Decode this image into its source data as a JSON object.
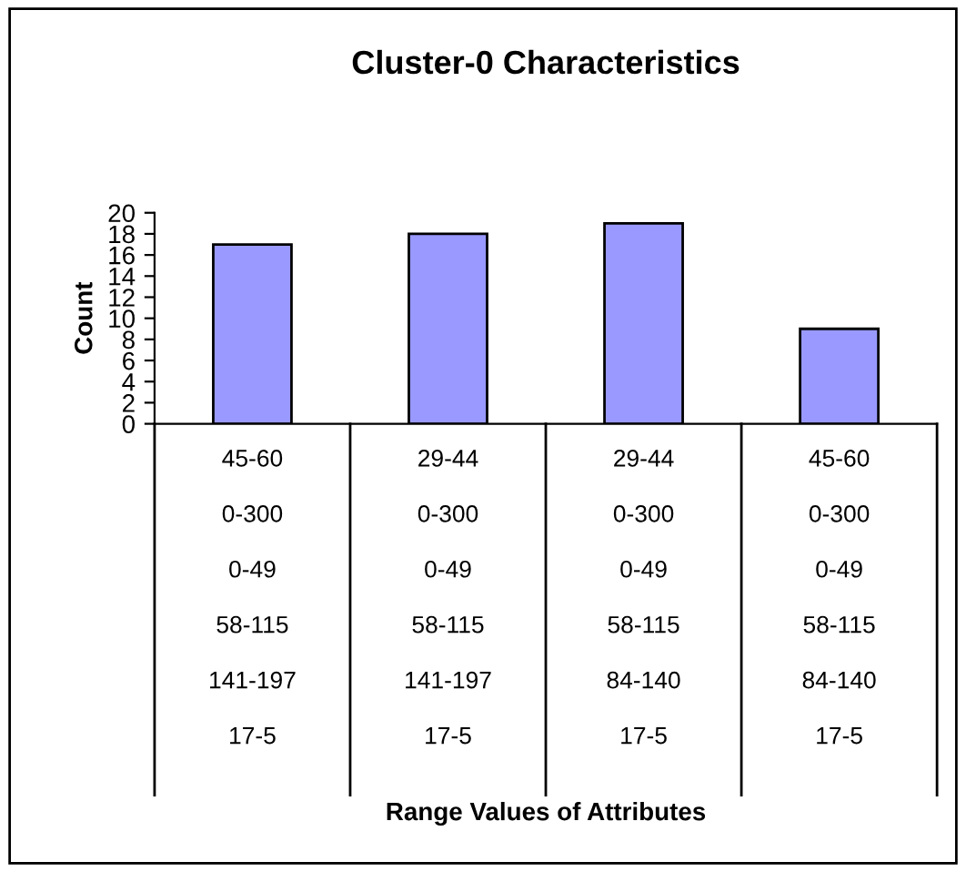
{
  "chart_data": {
    "type": "bar",
    "title": "Cluster-0 Characteristics",
    "annotations": [
      "Range Values of Attributes"
    ],
    "ylabel": "Count",
    "categories": [
      "45-60\n0-300\n0-49\n58-115\n141-197\n17-5",
      "29-44\n0-300\n0-49\n58-115\n141-197\n17-5",
      "29-44\n0-300\n0-49\n58-115\n84-140\n17-5",
      "45-60\n0-300\n0-49\n58-115\n84-140\n17-5"
    ],
    "values": [
      17,
      18,
      19,
      9
    ],
    "color": "#9999ff",
    "ylim": [
      0,
      20
    ],
    "yticks": [
      0,
      2,
      4,
      6,
      8,
      10,
      12,
      14,
      16,
      18,
      20
    ],
    "grid": false,
    "legend": false
  }
}
